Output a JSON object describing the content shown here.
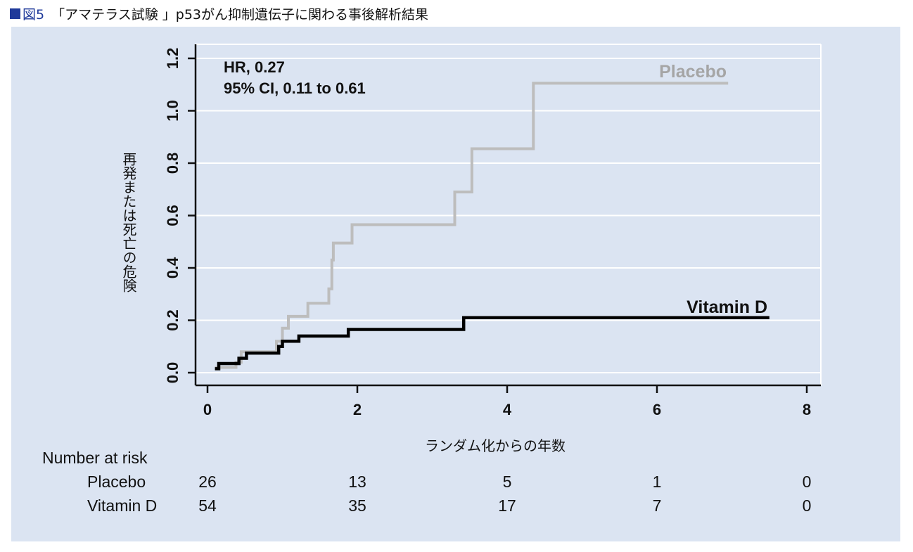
{
  "figure": {
    "marker_color": "#1f3a9a",
    "number": "図5",
    "title": "「アマテラス試験 」p53がん抑制遺伝子に関わる事後解析結果"
  },
  "chart_data": {
    "type": "line",
    "subtype": "kaplan-meier-step",
    "xlabel": "ランダム化からの年数",
    "ylabel": "再発または死亡の危険",
    "xlim": [
      0,
      8
    ],
    "ylim": [
      0,
      1.2
    ],
    "x_ticks": [
      "0",
      "2",
      "4",
      "6",
      "8"
    ],
    "y_ticks": [
      "0.0",
      "0.2",
      "0.4",
      "0.6",
      "0.8",
      "1.0",
      "1.2"
    ],
    "grid": "horizontal",
    "annotations": {
      "hr": "HR, 0.27",
      "ci": "95% CI, 0.11 to 0.61"
    },
    "series": [
      {
        "name": "Placebo",
        "color": "#bdbdbd",
        "points": [
          [
            0.1,
            0.02
          ],
          [
            0.38,
            0.02
          ],
          [
            0.38,
            0.04
          ],
          [
            0.45,
            0.04
          ],
          [
            0.45,
            0.08
          ],
          [
            0.92,
            0.08
          ],
          [
            0.92,
            0.12
          ],
          [
            1.0,
            0.12
          ],
          [
            1.0,
            0.17
          ],
          [
            1.08,
            0.17
          ],
          [
            1.08,
            0.215
          ],
          [
            1.34,
            0.215
          ],
          [
            1.34,
            0.265
          ],
          [
            1.62,
            0.265
          ],
          [
            1.62,
            0.32
          ],
          [
            1.66,
            0.32
          ],
          [
            1.66,
            0.43
          ],
          [
            1.68,
            0.43
          ],
          [
            1.68,
            0.495
          ],
          [
            1.93,
            0.495
          ],
          [
            1.93,
            0.565
          ],
          [
            3.3,
            0.565
          ],
          [
            3.3,
            0.69
          ],
          [
            3.53,
            0.69
          ],
          [
            3.53,
            0.855
          ],
          [
            4.35,
            0.855
          ],
          [
            4.35,
            1.105
          ],
          [
            6.95,
            1.105
          ]
        ]
      },
      {
        "name": "Vitamin D",
        "color": "#000000",
        "points": [
          [
            0.1,
            0.015
          ],
          [
            0.15,
            0.015
          ],
          [
            0.15,
            0.035
          ],
          [
            0.42,
            0.035
          ],
          [
            0.42,
            0.055
          ],
          [
            0.52,
            0.055
          ],
          [
            0.52,
            0.075
          ],
          [
            0.95,
            0.075
          ],
          [
            0.95,
            0.1
          ],
          [
            1.0,
            0.1
          ],
          [
            1.0,
            0.12
          ],
          [
            1.22,
            0.12
          ],
          [
            1.22,
            0.14
          ],
          [
            1.88,
            0.14
          ],
          [
            1.88,
            0.165
          ],
          [
            3.42,
            0.165
          ],
          [
            3.42,
            0.21
          ],
          [
            7.5,
            0.21
          ]
        ]
      }
    ]
  },
  "risk_table": {
    "header": "Number at risk",
    "rows": [
      {
        "label": "Placebo",
        "values": [
          "26",
          "13",
          "5",
          "1",
          "0"
        ]
      },
      {
        "label": "Vitamin D",
        "values": [
          "54",
          "35",
          "17",
          "7",
          "0"
        ]
      }
    ]
  }
}
